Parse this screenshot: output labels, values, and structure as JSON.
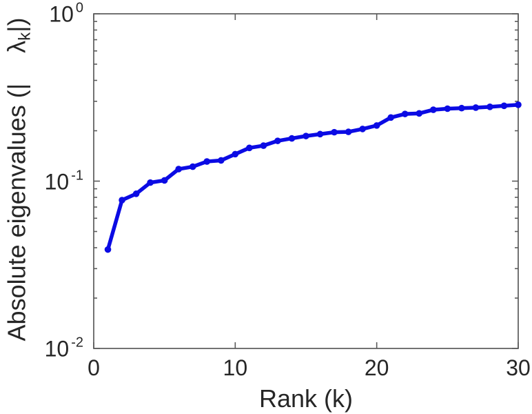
{
  "chart_data": {
    "type": "line",
    "title": "",
    "xlabel": "Rank (k)",
    "ylabel": "Absolute eigenvalues (| λk|)",
    "ylabel_parts": {
      "before": "Absolute eigenvalues (|",
      "symbol": "λ",
      "subscript": "k",
      "after": "|)"
    },
    "x": [
      1,
      2,
      3,
      4,
      5,
      6,
      7,
      8,
      9,
      10,
      11,
      12,
      13,
      14,
      15,
      16,
      17,
      18,
      19,
      20,
      21,
      22,
      23,
      24,
      25,
      26,
      27,
      28,
      29,
      30
    ],
    "series": [
      {
        "name": "absolute-eigenvalues",
        "values": [
          0.039,
          0.077,
          0.084,
          0.098,
          0.101,
          0.118,
          0.122,
          0.131,
          0.133,
          0.145,
          0.158,
          0.163,
          0.174,
          0.18,
          0.186,
          0.191,
          0.196,
          0.197,
          0.205,
          0.215,
          0.24,
          0.252,
          0.254,
          0.267,
          0.271,
          0.273,
          0.275,
          0.278,
          0.282,
          0.286
        ]
      }
    ],
    "xlim": [
      0,
      30
    ],
    "ylim": [
      0.01,
      1
    ],
    "yscale": "log",
    "x_ticks": [
      {
        "label": "0",
        "value": 0
      },
      {
        "label": "10",
        "value": 10
      },
      {
        "label": "20",
        "value": 20
      },
      {
        "label": "30",
        "value": 30
      }
    ],
    "y_ticks": [
      {
        "base": "10",
        "exp": "0",
        "value": 1
      },
      {
        "base": "10",
        "exp": "-1",
        "value": 0.1
      },
      {
        "base": "10",
        "exp": "-2",
        "value": 0.01
      }
    ],
    "y_minor_multipliers": [
      2,
      3,
      4,
      5,
      6,
      7,
      8,
      9
    ],
    "grid": false,
    "legend": null,
    "line_color": "#0b0be4",
    "axis_color": "#5a5a5a",
    "text_color": "#262626",
    "marker": "dot"
  }
}
